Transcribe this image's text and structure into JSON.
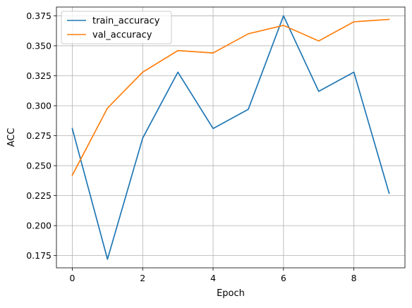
{
  "chart_data": {
    "type": "line",
    "xlabel": "Epoch",
    "ylabel": "ACC",
    "x": [
      0,
      1,
      2,
      3,
      4,
      5,
      6,
      7,
      8,
      9
    ],
    "xlim": [
      -0.45,
      9.45
    ],
    "ylim": [
      0.1648,
      0.3823
    ],
    "xticks": [
      0,
      2,
      4,
      6,
      8
    ],
    "yticks": [
      0.175,
      0.2,
      0.225,
      0.25,
      0.275,
      0.3,
      0.325,
      0.35,
      0.375
    ],
    "xtick_labels": [
      "0",
      "2",
      "4",
      "6",
      "8"
    ],
    "ytick_labels": [
      "0.175",
      "0.200",
      "0.225",
      "0.250",
      "0.275",
      "0.300",
      "0.325",
      "0.350",
      "0.375"
    ],
    "grid": true,
    "legend_position": "upper-left",
    "series": [
      {
        "name": "train_accuracy",
        "color": "#1f77b4",
        "values": [
          0.281,
          0.172,
          0.273,
          0.328,
          0.281,
          0.297,
          0.375,
          0.312,
          0.328,
          0.227
        ]
      },
      {
        "name": "val_accuracy",
        "color": "#ff7f0e",
        "values": [
          0.242,
          0.298,
          0.328,
          0.346,
          0.344,
          0.36,
          0.367,
          0.354,
          0.37,
          0.372
        ]
      }
    ]
  }
}
